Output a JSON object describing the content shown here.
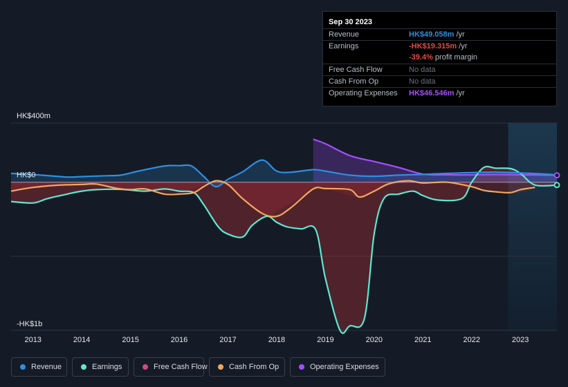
{
  "tooltip": {
    "date": "Sep 30 2023",
    "rows": [
      {
        "key": "Revenue",
        "value": "HK$49.058m",
        "unit": " /yr",
        "color": "#2e8fe0"
      },
      {
        "key": "Earnings",
        "value": "-HK$19.315m",
        "unit": " /yr",
        "color": "#e64848"
      },
      {
        "key": "",
        "value": "-39.4%",
        "unit": " profit margin",
        "color": "#e64848"
      },
      {
        "key": "Free Cash Flow",
        "value": "No data",
        "unit": "",
        "color": "#6b7280"
      },
      {
        "key": "Cash From Op",
        "value": "No data",
        "unit": "",
        "color": "#6b7280"
      },
      {
        "key": "Operating Expenses",
        "value": "HK$46.546m",
        "unit": " /yr",
        "color": "#a64dff"
      }
    ]
  },
  "chart_data": {
    "type": "line",
    "title": "",
    "ylim": [
      -1000,
      400
    ],
    "y_tick_labels": [
      {
        "value": 400,
        "label": "HK$400m"
      },
      {
        "value": 0,
        "label": "HK$0"
      },
      {
        "value": -1000,
        "label": "-HK$1b"
      }
    ],
    "x_ticks": [
      2013,
      2014,
      2015,
      2016,
      2017,
      2018,
      2019,
      2020,
      2021,
      2022,
      2023
    ],
    "xlim": [
      2012.55,
      2023.75
    ],
    "forecast_start": 2022.75,
    "series": [
      {
        "name": "Revenue",
        "color": "#2e8fe0",
        "x": [
          2012.55,
          2013.0,
          2013.3,
          2013.7,
          2014.0,
          2014.5,
          2014.8,
          2015.2,
          2015.7,
          2016.0,
          2016.25,
          2016.5,
          2016.75,
          2017.0,
          2017.3,
          2017.7,
          2018.0,
          2018.3,
          2018.75,
          2019.0,
          2019.5,
          2020.0,
          2020.5,
          2021.0,
          2021.5,
          2022.0,
          2022.5,
          2023.0,
          2023.5,
          2023.75
        ],
        "y": [
          60,
          52,
          45,
          35,
          38,
          44,
          48,
          78,
          110,
          112,
          110,
          40,
          -30,
          20,
          70,
          150,
          75,
          68,
          85,
          75,
          48,
          40,
          48,
          53,
          60,
          65,
          68,
          63,
          55,
          49
        ]
      },
      {
        "name": "Earnings",
        "color": "#5ee8cf",
        "x": [
          2012.55,
          2013.0,
          2013.3,
          2013.7,
          2014.0,
          2014.3,
          2014.8,
          2015.3,
          2015.7,
          2016.0,
          2016.3,
          2016.5,
          2016.8,
          2017.0,
          2017.3,
          2017.5,
          2017.8,
          2018.0,
          2018.2,
          2018.5,
          2018.8,
          2019.0,
          2019.3,
          2019.5,
          2019.8,
          2020.0,
          2020.2,
          2020.5,
          2020.8,
          2021.0,
          2021.3,
          2021.8,
          2022.0,
          2022.25,
          2022.5,
          2022.8,
          2023.0,
          2023.3,
          2023.75
        ],
        "y": [
          -130,
          -140,
          -110,
          -80,
          -60,
          -50,
          -48,
          -60,
          -45,
          -60,
          -70,
          -150,
          -300,
          -350,
          -370,
          -290,
          -230,
          -270,
          -300,
          -315,
          -320,
          -650,
          -1000,
          -970,
          -920,
          -350,
          -110,
          -80,
          -60,
          -90,
          -120,
          -110,
          0,
          100,
          95,
          92,
          60,
          -19,
          -19
        ]
      },
      {
        "name": "Free Cash Flow",
        "color": "#d04a7e",
        "x": [
          2012.55,
          2013.0,
          2014.0,
          2015.0,
          2016.0,
          2016.75,
          2017.0,
          2017.75,
          2018.0,
          2018.3,
          2018.75,
          2019.0,
          2019.7,
          2020.0,
          2020.5,
          2021.0,
          2021.5,
          2022.0,
          2022.5,
          2023.0,
          2023.3
        ],
        "y": [
          -60,
          -40,
          -20,
          -50,
          -70,
          10,
          -30,
          -230,
          -190,
          -140,
          -50,
          -45,
          -100,
          -60,
          -10,
          -5,
          0,
          -50,
          -65,
          -70,
          -35
        ]
      },
      {
        "name": "Cash From Op",
        "color": "#f0a860",
        "x": [
          2012.55,
          2013.0,
          2013.5,
          2014.0,
          2014.3,
          2014.7,
          2015.0,
          2015.3,
          2015.7,
          2016.0,
          2016.3,
          2016.5,
          2016.75,
          2017.0,
          2017.3,
          2017.7,
          2018.0,
          2018.3,
          2018.75,
          2019.0,
          2019.5,
          2019.7,
          2020.0,
          2020.3,
          2020.7,
          2021.0,
          2021.5,
          2022.0,
          2022.25,
          2022.5,
          2022.8,
          2023.0,
          2023.3
        ],
        "y": [
          -60,
          -35,
          -20,
          -15,
          -12,
          -40,
          -50,
          -45,
          -80,
          -80,
          -70,
          -30,
          10,
          -15,
          -110,
          -210,
          -230,
          -170,
          -45,
          -43,
          -50,
          -100,
          -60,
          -10,
          10,
          -5,
          0,
          -30,
          -55,
          -65,
          -70,
          -50,
          -35
        ]
      },
      {
        "name": "Operating Expenses",
        "color": "#a64dff",
        "x": [
          2018.75,
          2019.0,
          2019.5,
          2020.0,
          2020.5,
          2021.0,
          2021.5,
          2022.0,
          2022.5,
          2023.0,
          2023.5,
          2023.75
        ],
        "y": [
          290,
          260,
          180,
          140,
          100,
          55,
          50,
          50,
          52,
          50,
          48,
          47
        ]
      }
    ]
  },
  "legend": [
    {
      "label": "Revenue",
      "color": "#2e8fe0"
    },
    {
      "label": "Earnings",
      "color": "#5ee8cf"
    },
    {
      "label": "Free Cash Flow",
      "color": "#d04a7e"
    },
    {
      "label": "Cash From Op",
      "color": "#f0a860"
    },
    {
      "label": "Operating Expenses",
      "color": "#a64dff"
    }
  ]
}
